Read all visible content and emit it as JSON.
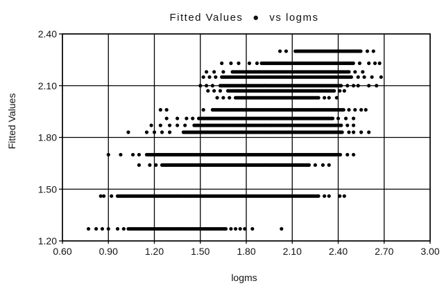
{
  "chart_data": {
    "type": "scatter",
    "title": "Fitted Values",
    "title_marker": "●",
    "title_vs": "vs logms",
    "xlabel": "logms",
    "ylabel": "Fitted Values",
    "xlim": [
      0.6,
      3.0
    ],
    "ylim": [
      1.2,
      2.4
    ],
    "grid": true,
    "xticks": [
      "0.60",
      "0.90",
      "1.20",
      "1.50",
      "1.80",
      "2.10",
      "2.40",
      "2.70",
      "3.00"
    ],
    "yticks": [
      "1.20",
      "1.50",
      "1.80",
      "2.10",
      "2.40"
    ],
    "xtick_values": [
      0.6,
      0.9,
      1.2,
      1.5,
      1.8,
      2.1,
      2.4,
      2.7,
      3.0
    ],
    "ytick_values": [
      1.2,
      1.5,
      1.8,
      2.1,
      2.4
    ],
    "marker_color": "#000000",
    "series": [
      {
        "rows": [
          {
            "y": 1.27,
            "x_start": 1.03,
            "x_end": 1.67,
            "scatter": [
              0.77,
              0.82,
              0.86,
              0.9,
              0.96,
              1.0,
              1.7,
              1.73,
              1.76,
              1.79,
              1.84,
              2.03
            ]
          },
          {
            "y": 1.46,
            "x_start": 0.96,
            "x_end": 2.28,
            "scatter": [
              0.85,
              0.87,
              0.92,
              2.31,
              2.34,
              2.41,
              2.44
            ]
          },
          {
            "y": 1.64,
            "x_start": 1.25,
            "x_end": 2.21,
            "scatter": [
              1.1,
              1.17,
              1.21,
              2.25,
              2.3,
              2.34
            ]
          },
          {
            "y": 1.7,
            "x_start": 1.15,
            "x_end": 2.42,
            "scatter": [
              0.9,
              0.98,
              1.06,
              1.1,
              2.46,
              2.5
            ]
          },
          {
            "y": 1.83,
            "x_start": 1.39,
            "x_end": 2.43,
            "scatter": [
              1.03,
              1.15,
              1.2,
              1.25,
              1.3,
              2.47,
              2.5,
              2.55,
              2.6
            ]
          },
          {
            "y": 1.87,
            "x_start": 1.46,
            "x_end": 2.42,
            "scatter": [
              1.18,
              1.24,
              1.3,
              1.35,
              1.4,
              2.46,
              2.5
            ]
          },
          {
            "y": 1.91,
            "x_start": 1.49,
            "x_end": 2.37,
            "scatter": [
              1.28,
              1.35,
              1.41,
              1.45,
              2.4,
              2.45,
              2.5
            ]
          },
          {
            "y": 1.96,
            "x_start": 1.58,
            "x_end": 2.44,
            "scatter": [
              1.24,
              1.28,
              1.52,
              2.47,
              2.51,
              2.55,
              2.58
            ]
          },
          {
            "y": 2.03,
            "x_start": 1.73,
            "x_end": 2.28,
            "scatter": [
              1.61,
              1.65,
              1.69,
              2.31,
              2.34,
              2.39
            ]
          },
          {
            "y": 2.07,
            "x_start": 1.68,
            "x_end": 2.38,
            "scatter": [
              1.55,
              1.59,
              1.63,
              2.41,
              2.44
            ]
          },
          {
            "y": 2.1,
            "x_start": 1.63,
            "x_end": 2.42,
            "scatter": [
              1.5,
              1.54,
              1.58,
              2.46,
              2.5,
              2.53,
              2.6,
              2.65
            ]
          },
          {
            "y": 2.15,
            "x_start": 1.64,
            "x_end": 2.49,
            "scatter": [
              1.52,
              1.56,
              1.6,
              2.53,
              2.57,
              2.62,
              2.68
            ]
          },
          {
            "y": 2.18,
            "x_start": 1.71,
            "x_end": 2.47,
            "scatter": [
              1.54,
              1.59,
              1.65,
              2.51,
              2.56
            ]
          },
          {
            "y": 2.23,
            "x_start": 1.9,
            "x_end": 2.5,
            "scatter": [
              1.64,
              1.7,
              1.75,
              1.82,
              1.87,
              2.54,
              2.6,
              2.64,
              2.67
            ]
          },
          {
            "y": 2.3,
            "x_start": 2.12,
            "x_end": 2.55,
            "scatter": [
              2.02,
              2.06,
              2.59,
              2.63
            ]
          }
        ]
      }
    ]
  }
}
